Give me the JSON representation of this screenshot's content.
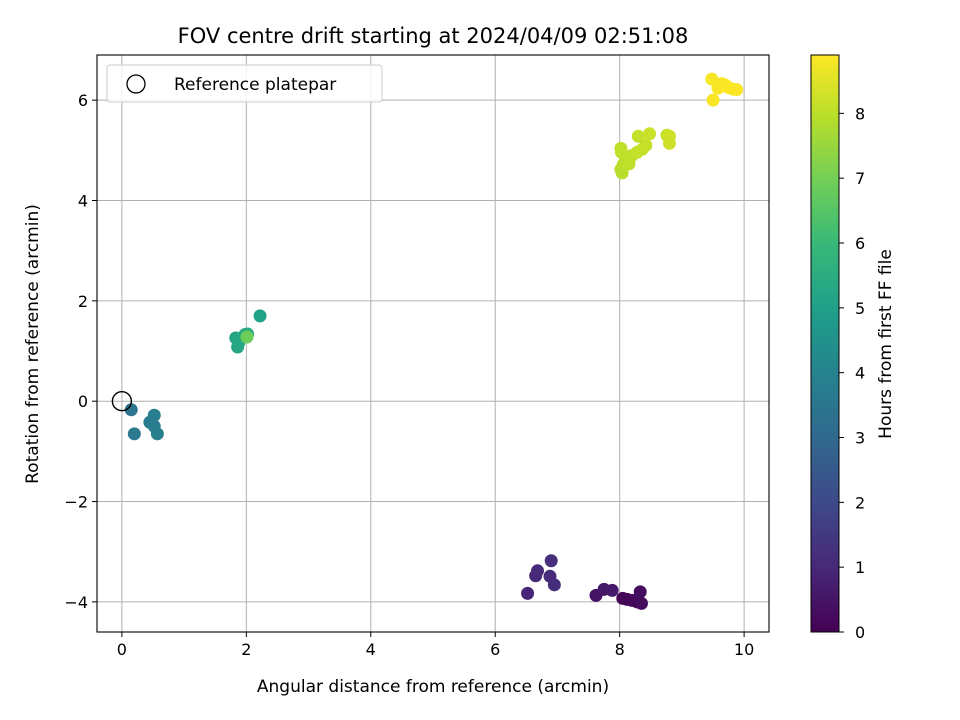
{
  "chart_data": {
    "type": "scatter",
    "title": "FOV centre drift starting at 2024/04/09 02:51:08",
    "xlabel": "Angular distance from reference (arcmin)",
    "ylabel": "Rotation from reference (arcmin)",
    "xlim": [
      -0.4,
      10.4
    ],
    "ylim": [
      -4.6,
      6.9
    ],
    "xticks": [
      0,
      2,
      4,
      6,
      8,
      10
    ],
    "yticks": [
      -4,
      -2,
      0,
      2,
      4,
      6
    ],
    "xtick_labels": [
      "0",
      "2",
      "4",
      "6",
      "8",
      "10"
    ],
    "ytick_labels": [
      "−4",
      "−2",
      "0",
      "2",
      "4",
      "6"
    ],
    "grid": true,
    "colormap": "viridis",
    "reference": {
      "label": "Reference platepar",
      "x": 0,
      "y": 0,
      "marker": "open-circle"
    },
    "legend": {
      "placement": "upper-left",
      "entries": [
        "Reference platepar"
      ]
    },
    "colorbar": {
      "label": "Hours from first FF file",
      "min": 0,
      "max": 8.9,
      "ticks": [
        0,
        1,
        2,
        3,
        4,
        5,
        6,
        7,
        8
      ],
      "tick_labels": [
        "0",
        "1",
        "2",
        "3",
        "4",
        "5",
        "6",
        "7",
        "8"
      ],
      "stops": [
        "#440154",
        "#482878",
        "#3e4989",
        "#31688e",
        "#26828e",
        "#1f9e89",
        "#35b779",
        "#6ece58",
        "#b5de2b",
        "#fde725"
      ]
    },
    "points": [
      {
        "x": 8.05,
        "y": -3.93,
        "hours": 0.05
      },
      {
        "x": 8.12,
        "y": -3.95,
        "hours": 0.1
      },
      {
        "x": 8.2,
        "y": -3.97,
        "hours": 0.15
      },
      {
        "x": 8.28,
        "y": -4.0,
        "hours": 0.2
      },
      {
        "x": 8.35,
        "y": -4.03,
        "hours": 0.25
      },
      {
        "x": 8.33,
        "y": -3.8,
        "hours": 0.3
      },
      {
        "x": 7.62,
        "y": -3.87,
        "hours": 0.45
      },
      {
        "x": 7.75,
        "y": -3.75,
        "hours": 0.55
      },
      {
        "x": 7.88,
        "y": -3.77,
        "hours": 0.6
      },
      {
        "x": 6.52,
        "y": -3.83,
        "hours": 0.95
      },
      {
        "x": 6.65,
        "y": -3.48,
        "hours": 1.0
      },
      {
        "x": 6.68,
        "y": -3.38,
        "hours": 1.05
      },
      {
        "x": 6.88,
        "y": -3.49,
        "hours": 1.1
      },
      {
        "x": 6.95,
        "y": -3.66,
        "hours": 1.15
      },
      {
        "x": 6.9,
        "y": -3.18,
        "hours": 1.2
      },
      {
        "x": 0.15,
        "y": -0.17,
        "hours": 3.5
      },
      {
        "x": 0.2,
        "y": -0.65,
        "hours": 3.6
      },
      {
        "x": 0.45,
        "y": -0.42,
        "hours": 3.7
      },
      {
        "x": 0.52,
        "y": -0.28,
        "hours": 3.75
      },
      {
        "x": 0.52,
        "y": -0.5,
        "hours": 3.8
      },
      {
        "x": 0.57,
        "y": -0.65,
        "hours": 3.85
      },
      {
        "x": 1.83,
        "y": 1.26,
        "hours": 5.2
      },
      {
        "x": 1.86,
        "y": 1.08,
        "hours": 5.25
      },
      {
        "x": 1.88,
        "y": 1.17,
        "hours": 5.3
      },
      {
        "x": 1.98,
        "y": 1.33,
        "hours": 5.35
      },
      {
        "x": 2.02,
        "y": 1.34,
        "hours": 5.4
      },
      {
        "x": 2.22,
        "y": 1.7,
        "hours": 5.1
      },
      {
        "x": 2.01,
        "y": 1.28,
        "hours": 6.9
      },
      {
        "x": 8.02,
        "y": 4.62,
        "hours": 7.9
      },
      {
        "x": 8.04,
        "y": 4.55,
        "hours": 7.95
      },
      {
        "x": 8.06,
        "y": 4.72,
        "hours": 8.0
      },
      {
        "x": 8.1,
        "y": 4.8,
        "hours": 8.0
      },
      {
        "x": 8.15,
        "y": 4.73,
        "hours": 8.05
      },
      {
        "x": 8.2,
        "y": 4.9,
        "hours": 8.05
      },
      {
        "x": 8.28,
        "y": 4.96,
        "hours": 8.1
      },
      {
        "x": 8.3,
        "y": 5.28,
        "hours": 8.1
      },
      {
        "x": 8.36,
        "y": 5.02,
        "hours": 8.15
      },
      {
        "x": 8.42,
        "y": 5.1,
        "hours": 8.15
      },
      {
        "x": 8.48,
        "y": 5.33,
        "hours": 8.2
      },
      {
        "x": 8.02,
        "y": 5.04,
        "hours": 8.05
      },
      {
        "x": 8.03,
        "y": 4.96,
        "hours": 8.05
      },
      {
        "x": 8.76,
        "y": 5.3,
        "hours": 8.2
      },
      {
        "x": 8.8,
        "y": 5.28,
        "hours": 8.25
      },
      {
        "x": 8.8,
        "y": 5.14,
        "hours": 8.25
      },
      {
        "x": 9.48,
        "y": 6.42,
        "hours": 8.8
      },
      {
        "x": 9.5,
        "y": 6.0,
        "hours": 8.8
      },
      {
        "x": 9.58,
        "y": 6.24,
        "hours": 8.85
      },
      {
        "x": 9.64,
        "y": 6.33,
        "hours": 8.85
      },
      {
        "x": 9.7,
        "y": 6.3,
        "hours": 8.85
      },
      {
        "x": 9.75,
        "y": 6.25,
        "hours": 8.9
      },
      {
        "x": 9.82,
        "y": 6.22,
        "hours": 8.9
      },
      {
        "x": 9.88,
        "y": 6.21,
        "hours": 8.9
      }
    ]
  }
}
